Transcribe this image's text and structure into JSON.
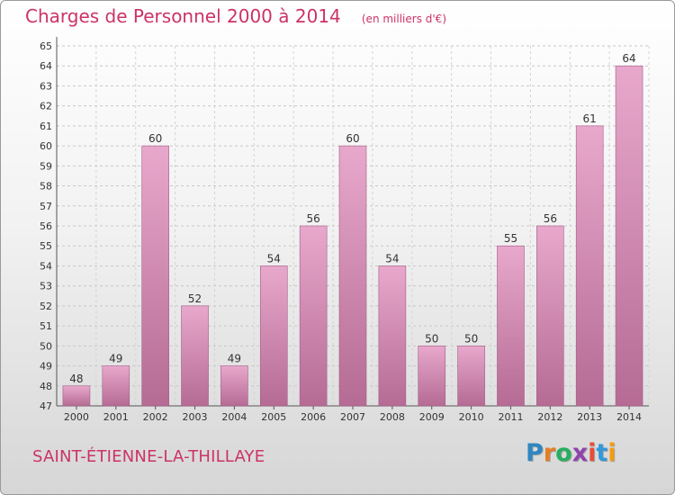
{
  "header": {
    "title": "Charges de Personnel 2000 à 2014",
    "subtitle": "(en milliers d'€)"
  },
  "footer": {
    "commune": "SAINT-ÉTIENNE-LA-THILLAYE",
    "logo": "Proxiti"
  },
  "colors": {
    "title": "#cc3366",
    "bar_light": "#e8a8cc",
    "bar_dark": "#b56b94",
    "logo": [
      "#2e86c1",
      "#e67e22",
      "#27ae60",
      "#8e44ad",
      "#e74c3c",
      "#3498db",
      "#f39c12"
    ]
  },
  "chart_data": {
    "type": "bar",
    "title": "Charges de Personnel 2000 à 2014",
    "subtitle": "(en milliers d'€)",
    "categories": [
      "2000",
      "2001",
      "2002",
      "2003",
      "2004",
      "2005",
      "2006",
      "2007",
      "2008",
      "2009",
      "2010",
      "2011",
      "2012",
      "2013",
      "2014"
    ],
    "values": [
      48,
      49,
      60,
      52,
      49,
      54,
      56,
      60,
      54,
      50,
      50,
      55,
      56,
      61,
      64
    ],
    "ylim": [
      47,
      65
    ],
    "yticks": [
      47,
      48,
      49,
      50,
      51,
      52,
      53,
      54,
      55,
      56,
      57,
      58,
      59,
      60,
      61,
      62,
      63,
      64,
      65
    ],
    "xlabel": "",
    "ylabel": "",
    "grid": true,
    "data_labels": true
  }
}
